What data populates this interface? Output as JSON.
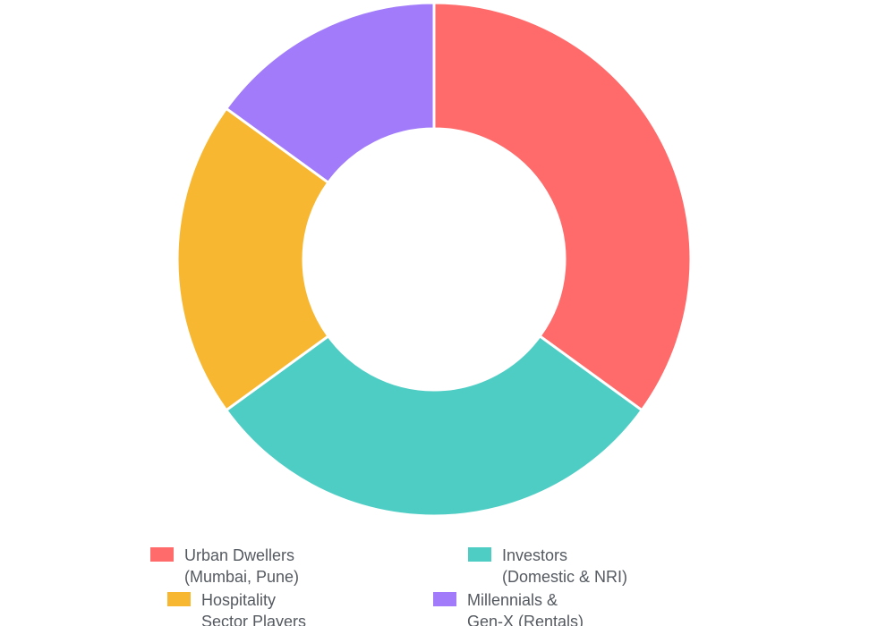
{
  "chart_data": {
    "type": "pie",
    "variant": "doughnut",
    "title": "",
    "categories": [
      "Urban Dwellers (Mumbai, Pune)",
      "Investors (Domestic & NRI)",
      "Hospitality Sector Players",
      "Millennials & Gen-X (Rentals)"
    ],
    "values": [
      35,
      30,
      20,
      15
    ],
    "unit": "%",
    "colors": [
      "#FF6B6B",
      "#4ECDC4",
      "#F7B731",
      "#A17BFA"
    ],
    "legend_position": "bottom",
    "legend": [
      {
        "line1": "Urban Dwellers",
        "line2": "(Mumbai, Pune)",
        "color": "#FF6B6B"
      },
      {
        "line1": "Investors",
        "line2": "(Domestic & NRI)",
        "color": "#4ECDC4"
      },
      {
        "line1": "Hospitality",
        "line2": "Sector Players",
        "color": "#F7B731"
      },
      {
        "line1": "Millennials &",
        "line2": "Gen-X (Rentals)",
        "color": "#A17BFA"
      }
    ]
  }
}
